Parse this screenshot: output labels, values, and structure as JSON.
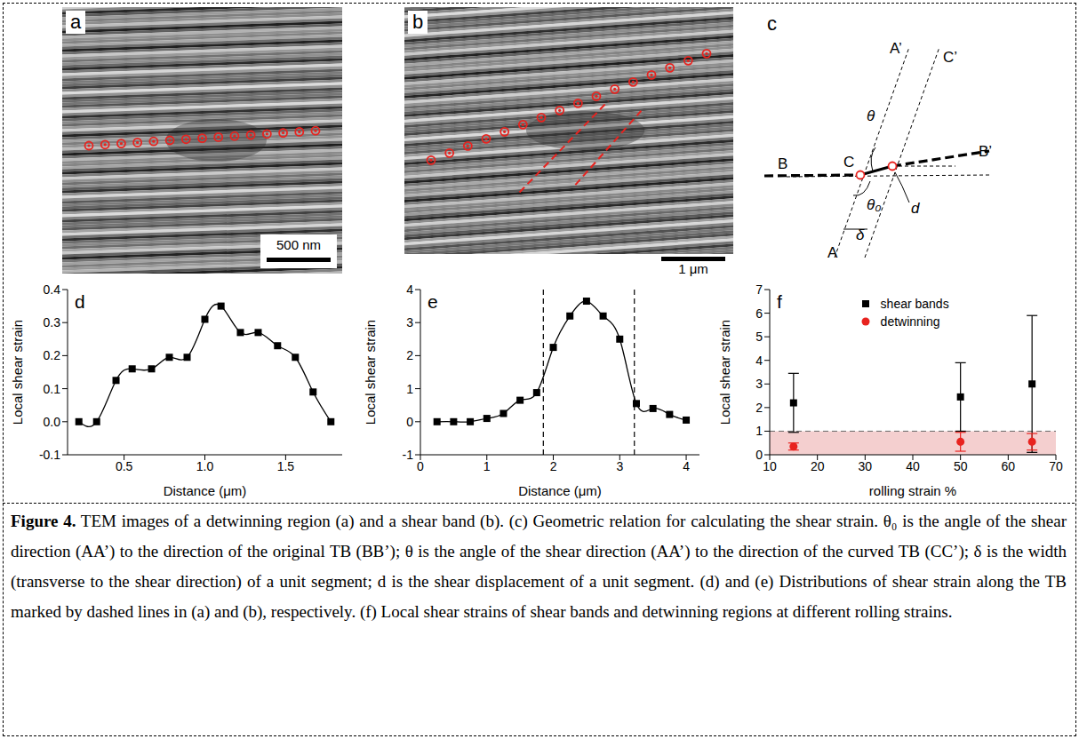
{
  "images": [
    {
      "letter": "a",
      "scale_bar": "500 nm"
    },
    {
      "letter": "b",
      "scale_bar": "1 μm"
    }
  ],
  "diagram": {
    "letter": "c",
    "labels": [
      "A’",
      "B",
      "C",
      "C’",
      "B’",
      "A",
      "θ",
      "θ₀",
      "δ",
      "d"
    ]
  },
  "chart_data": [
    {
      "type": "line",
      "panel": "d",
      "x_label": "Distance (μm)",
      "y_label": "Local shear strain",
      "x": [
        0.22,
        0.33,
        0.45,
        0.55,
        0.67,
        0.78,
        0.89,
        1.0,
        1.1,
        1.22,
        1.33,
        1.45,
        1.56,
        1.67,
        1.78
      ],
      "values": [
        0,
        0,
        0.125,
        0.16,
        0.16,
        0.195,
        0.195,
        0.31,
        0.35,
        0.27,
        0.27,
        0.23,
        0.195,
        0.09,
        0
      ],
      "color": "#000000",
      "marker": "square",
      "line_style": "solid",
      "grid": false,
      "xlim": [
        0.15,
        1.85
      ],
      "xticks": [
        0.5,
        {
          "value": 1,
          "label": "1.0"
        },
        1.5
      ],
      "ylim": [
        -0.1,
        0.4
      ],
      "yticks": [
        -0.1,
        {
          "value": 0,
          "label": "0.0"
        },
        0.1,
        0.2,
        0.3,
        0.4
      ]
    },
    {
      "type": "line",
      "panel": "e",
      "x_label": "Distance (μm)",
      "y_label": "Local shear strain",
      "x": [
        0.25,
        0.5,
        0.75,
        1.0,
        1.25,
        1.5,
        1.75,
        2.0,
        2.25,
        2.5,
        2.75,
        3.0,
        3.25,
        3.5,
        3.75,
        4.0
      ],
      "values": [
        0,
        0,
        0,
        0.1,
        0.25,
        0.65,
        0.88,
        2.25,
        3.2,
        3.65,
        3.2,
        2.5,
        0.55,
        0.4,
        0.22,
        0.05
      ],
      "color": "#000000",
      "marker": "square",
      "line_style": "solid",
      "grid": false,
      "reference_lines_x": [
        1.85,
        3.22
      ],
      "xlim": [
        0,
        4.2
      ],
      "xticks": [
        0,
        1,
        2,
        3,
        4
      ],
      "ylim": [
        -1,
        4
      ],
      "yticks": [
        -1,
        0,
        1,
        2,
        3,
        4
      ]
    },
    {
      "type": "scatter",
      "panel": "f",
      "x_label": "rolling strain %",
      "y_label": "Local shear strain",
      "legend": "top",
      "grid": false,
      "series": [
        {
          "name": "shear bands",
          "color": "#000000",
          "marker": "square",
          "x": [
            15,
            50,
            65
          ],
          "values": [
            2.2,
            2.45,
            3.0
          ],
          "errors": [
            1.25,
            1.45,
            2.9
          ]
        },
        {
          "name": "detwinning",
          "color": "#e8231f",
          "marker": "circle",
          "x": [
            15,
            50,
            65
          ],
          "values": [
            0.35,
            0.55,
            0.55
          ],
          "errors": [
            0.15,
            0.4,
            0.35
          ]
        }
      ],
      "reference_lines_y": [
        1
      ],
      "shaded_band": [
        0,
        1
      ],
      "xlim": [
        10,
        70
      ],
      "xticks": [
        10,
        20,
        30,
        40,
        50,
        60,
        70
      ],
      "ylim": [
        0,
        7
      ],
      "yticks": [
        0,
        1,
        2,
        3,
        4,
        5,
        6,
        7
      ]
    }
  ],
  "caption": {
    "label": "Figure 4.",
    "text": "TEM images of a detwinning region (a) and a shear band (b). (c) Geometric relation for calculating the shear strain. θ₀ is the angle of the shear direction (AA’) to the direction of the original TB (BB’); θ is the angle of the shear direction (AA’) to the direction of the curved TB (CC’); δ is the width (transverse to the shear direction) of a unit segment; d is the shear displacement of a unit segment. (d) and (e) Distributions of shear strain along the TB marked by dashed lines in (a) and (b), respectively. (f) Local shear strains of shear bands and detwinning regions at different rolling strains."
  }
}
